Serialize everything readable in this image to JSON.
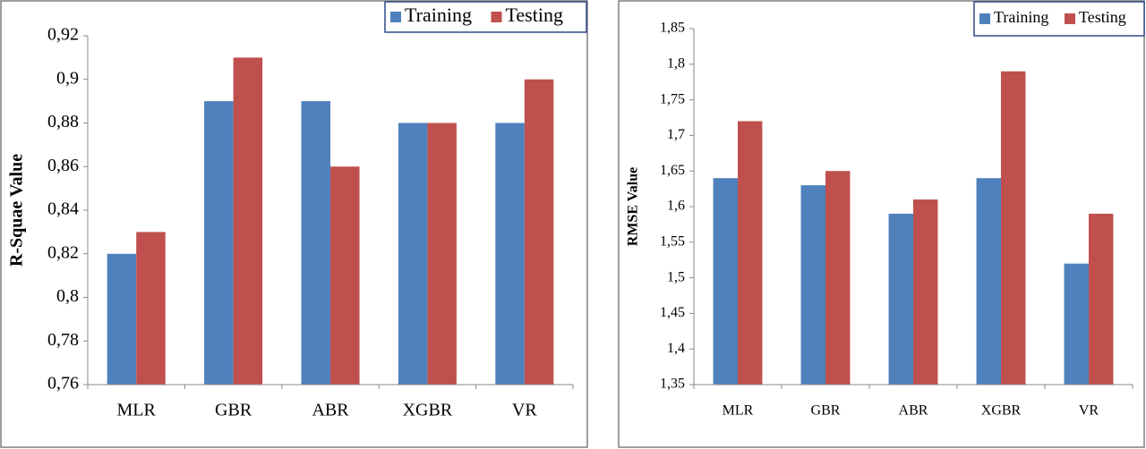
{
  "chart_data": [
    {
      "type": "bar",
      "y_label": "R-Squae Value",
      "categories": [
        "MLR",
        "GBR",
        "ABR",
        "XGBR",
        "VR"
      ],
      "series": [
        {
          "name": "Training",
          "color": "#4f81bd",
          "values": [
            0.82,
            0.89,
            0.89,
            0.88,
            0.88
          ]
        },
        {
          "name": "Testing",
          "color": "#c0504d",
          "values": [
            0.83,
            0.91,
            0.86,
            0.88,
            0.9
          ]
        }
      ],
      "ylim": [
        0.76,
        0.92
      ],
      "yticks": [
        {
          "value": 0.76,
          "label": "0,76"
        },
        {
          "value": 0.78,
          "label": "0,78"
        },
        {
          "value": 0.8,
          "label": "0,8"
        },
        {
          "value": 0.82,
          "label": "0,82"
        },
        {
          "value": 0.84,
          "label": "0,84"
        },
        {
          "value": 0.86,
          "label": "0,86"
        },
        {
          "value": 0.88,
          "label": "0,88"
        },
        {
          "value": 0.9,
          "label": "0,9"
        },
        {
          "value": 0.92,
          "label": "0,92"
        }
      ],
      "grid": false,
      "legend": "top-right"
    },
    {
      "type": "bar",
      "y_label": "RMSE Value",
      "categories": [
        "MLR",
        "GBR",
        "ABR",
        "XGBR",
        "VR"
      ],
      "series": [
        {
          "name": "Training",
          "color": "#4f81bd",
          "values": [
            1.64,
            1.63,
            1.59,
            1.64,
            1.52
          ]
        },
        {
          "name": "Testing",
          "color": "#c0504d",
          "values": [
            1.72,
            1.65,
            1.61,
            1.79,
            1.59
          ]
        }
      ],
      "ylim": [
        1.35,
        1.85
      ],
      "yticks": [
        {
          "value": 1.35,
          "label": "1,35"
        },
        {
          "value": 1.4,
          "label": "1,4"
        },
        {
          "value": 1.45,
          "label": "1,45"
        },
        {
          "value": 1.5,
          "label": "1,5"
        },
        {
          "value": 1.55,
          "label": "1,55"
        },
        {
          "value": 1.6,
          "label": "1,6"
        },
        {
          "value": 1.65,
          "label": "1,65"
        },
        {
          "value": 1.7,
          "label": "1,7"
        },
        {
          "value": 1.75,
          "label": "1,75"
        },
        {
          "value": 1.8,
          "label": "1,8"
        },
        {
          "value": 1.85,
          "label": "1,85"
        }
      ],
      "grid": false,
      "legend": "top-right"
    }
  ]
}
